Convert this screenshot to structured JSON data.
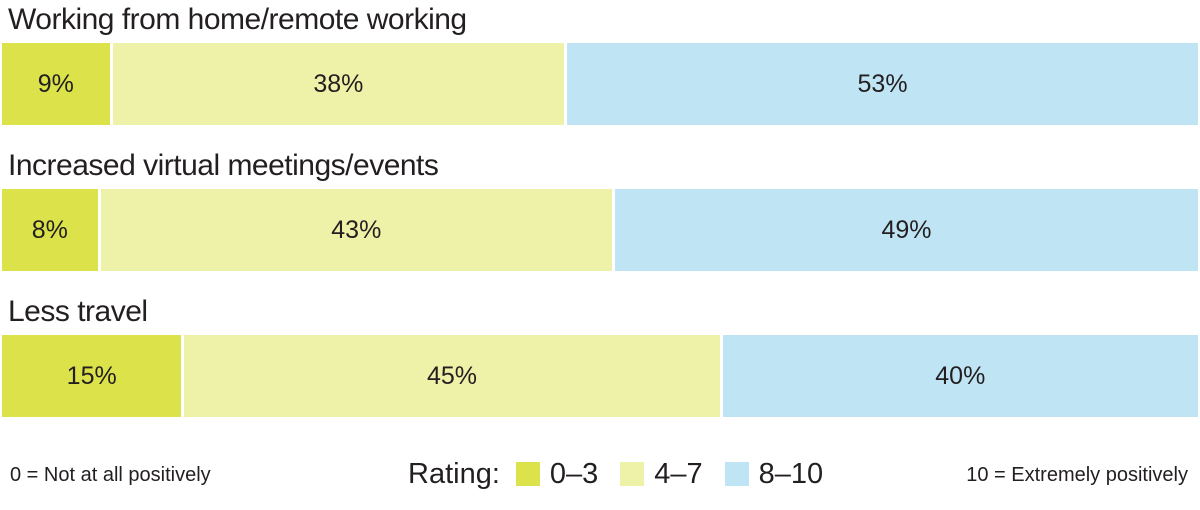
{
  "chart_data": {
    "type": "bar",
    "orientation": "horizontal",
    "stacked": true,
    "categories": [
      "Working from home/remote working",
      "Increased virtual meetings/events",
      "Less travel"
    ],
    "series": [
      {
        "name": "0–3",
        "color": "#dbe24a",
        "values": [
          9,
          8,
          15
        ],
        "labels": [
          "9%",
          "8%",
          "15%"
        ]
      },
      {
        "name": "4–7",
        "color": "#eef2a8",
        "values": [
          38,
          43,
          45
        ],
        "labels": [
          "38%",
          "43%",
          "45%"
        ]
      },
      {
        "name": "8–10",
        "color": "#bfe5f5",
        "values": [
          53,
          49,
          40
        ],
        "labels": [
          "53%",
          "49%",
          "40%"
        ]
      }
    ],
    "xlim": [
      0,
      100
    ],
    "grid": false,
    "legend": {
      "title": "Rating:",
      "position": "bottom-center"
    }
  },
  "notes": {
    "left": "0 = Not at all positively",
    "right": "10 = Extremely positively"
  }
}
